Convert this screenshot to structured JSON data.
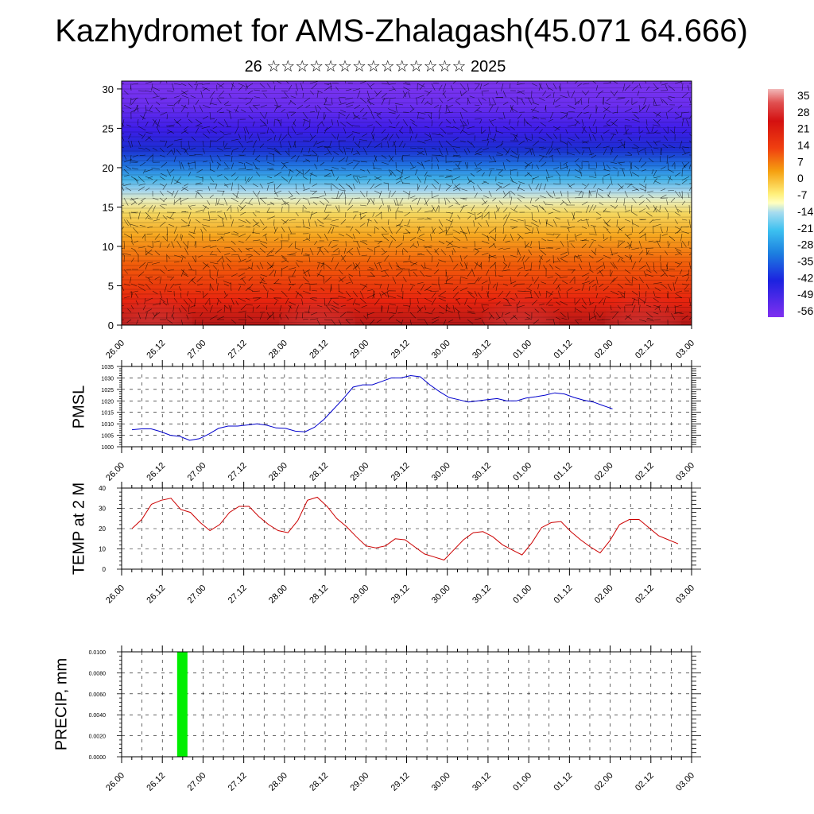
{
  "title": "Kazhydromet for AMS-Zhalagash(45.071 64.666)",
  "subtitle": "26 ☆☆☆☆☆☆☆☆☆☆☆☆☆☆ 2025",
  "chart_data": [
    {
      "type": "heatmap",
      "name": "vertical-profile",
      "x_tick_labels": [
        "26.00",
        "26.12",
        "27.00",
        "27.12",
        "28.00",
        "28.12",
        "29.00",
        "29.12",
        "30.00",
        "30.12",
        "01.00",
        "01.12",
        "02.00",
        "02.12",
        "03.00"
      ],
      "y_ticks": [
        0,
        5,
        10,
        15,
        20,
        25,
        30
      ],
      "ylim": [
        0,
        31
      ],
      "colorbar": {
        "labels": [
          "35",
          "28",
          "21",
          "14",
          "7",
          "0",
          "-7",
          "-14",
          "-21",
          "-28",
          "-35",
          "-42",
          "-49",
          "-56"
        ],
        "range": [
          -60,
          38
        ]
      },
      "values_note_removed": true,
      "surface_temperature_peaks_x_index": [
        1,
        5,
        10,
        13
      ],
      "wind_barbs": true
    },
    {
      "type": "line",
      "name": "PMSL",
      "ylabel": "PMSL",
      "ylim": [
        1000,
        1035
      ],
      "y_ticks": [
        1000,
        1005,
        1010,
        1015,
        1020,
        1025,
        1030,
        1035
      ],
      "x_tick_labels": [
        "26.00",
        "26.12",
        "27.00",
        "27.12",
        "28.00",
        "28.12",
        "29.00",
        "29.12",
        "30.00",
        "30.12",
        "01.00",
        "01.12",
        "02.00",
        "02.12",
        "03.00"
      ],
      "line_color": "#0000cc",
      "values": [
        1007.4,
        1007.8,
        1007.8,
        1006.6,
        1005.0,
        1004.5,
        1002.8,
        1003.5,
        1005.5,
        1008.0,
        1009.0,
        1009.0,
        1009.5,
        1010.0,
        1009.4,
        1008.2,
        1008.0,
        1006.8,
        1006.5,
        1008.5,
        1012.0,
        1016.5,
        1021.0,
        1026.0,
        1027.0,
        1027.0,
        1028.5,
        1030.0,
        1030.0,
        1031.0,
        1030.5,
        1027.0,
        1024.0,
        1021.5,
        1020.5,
        1019.5,
        1020.0,
        1020.5,
        1021.0,
        1020.0,
        1020.0,
        1021.2,
        1021.8,
        1022.5,
        1023.5,
        1023.0,
        1021.5,
        1020.3,
        1019.5,
        1018.0,
        1016.5
      ],
      "x_start": 0,
      "x_step": 0.25
    },
    {
      "type": "line",
      "name": "TEMP at 2 M",
      "ylabel": "TEMP at 2 M",
      "ylim": [
        0,
        40
      ],
      "y_ticks": [
        0,
        10,
        20,
        30,
        40
      ],
      "x_tick_labels": [
        "26.00",
        "26.12",
        "27.00",
        "27.12",
        "28.00",
        "28.12",
        "29.00",
        "29.12",
        "30.00",
        "30.12",
        "01.00",
        "01.12",
        "02.00",
        "02.12",
        "03.00"
      ],
      "line_color": "#cc0000",
      "values": [
        20.0,
        24.5,
        32.0,
        34.0,
        35.0,
        29.5,
        28.0,
        23.0,
        19.0,
        22.0,
        28.0,
        31.0,
        31.0,
        26.0,
        22.0,
        19.0,
        18.0,
        24.0,
        34.0,
        35.5,
        31.0,
        25.0,
        21.0,
        16.0,
        11.5,
        10.5,
        11.5,
        15.0,
        14.5,
        11.0,
        7.5,
        6.0,
        4.5,
        9.5,
        14.5,
        18.0,
        18.5,
        16.0,
        12.0,
        9.5,
        7.0,
        13.0,
        20.5,
        23.0,
        23.5,
        18.5,
        14.5,
        11.0,
        8.0,
        14.0,
        22.0,
        24.5,
        24.5,
        20.5,
        16.5,
        14.5,
        12.5
      ],
      "x_start": 0,
      "x_step": 0.25
    },
    {
      "type": "bar",
      "name": "PRECIP",
      "ylabel": "PRECIP, mm",
      "ylim": [
        0,
        0.01
      ],
      "y_tick_labels": [
        "0.0000",
        "0.0020",
        "0.0040",
        "0.0060",
        "0.0080",
        "0.0100"
      ],
      "x_tick_labels": [
        "26.00",
        "26.12",
        "27.00",
        "27.12",
        "28.00",
        "28.12",
        "29.00",
        "29.12",
        "30.00",
        "30.12",
        "01.00",
        "01.12",
        "02.00",
        "02.12",
        "03.00"
      ],
      "bar_color": "#00ee00",
      "bars": [
        {
          "x": 1.5,
          "value": 0.01
        }
      ]
    }
  ]
}
